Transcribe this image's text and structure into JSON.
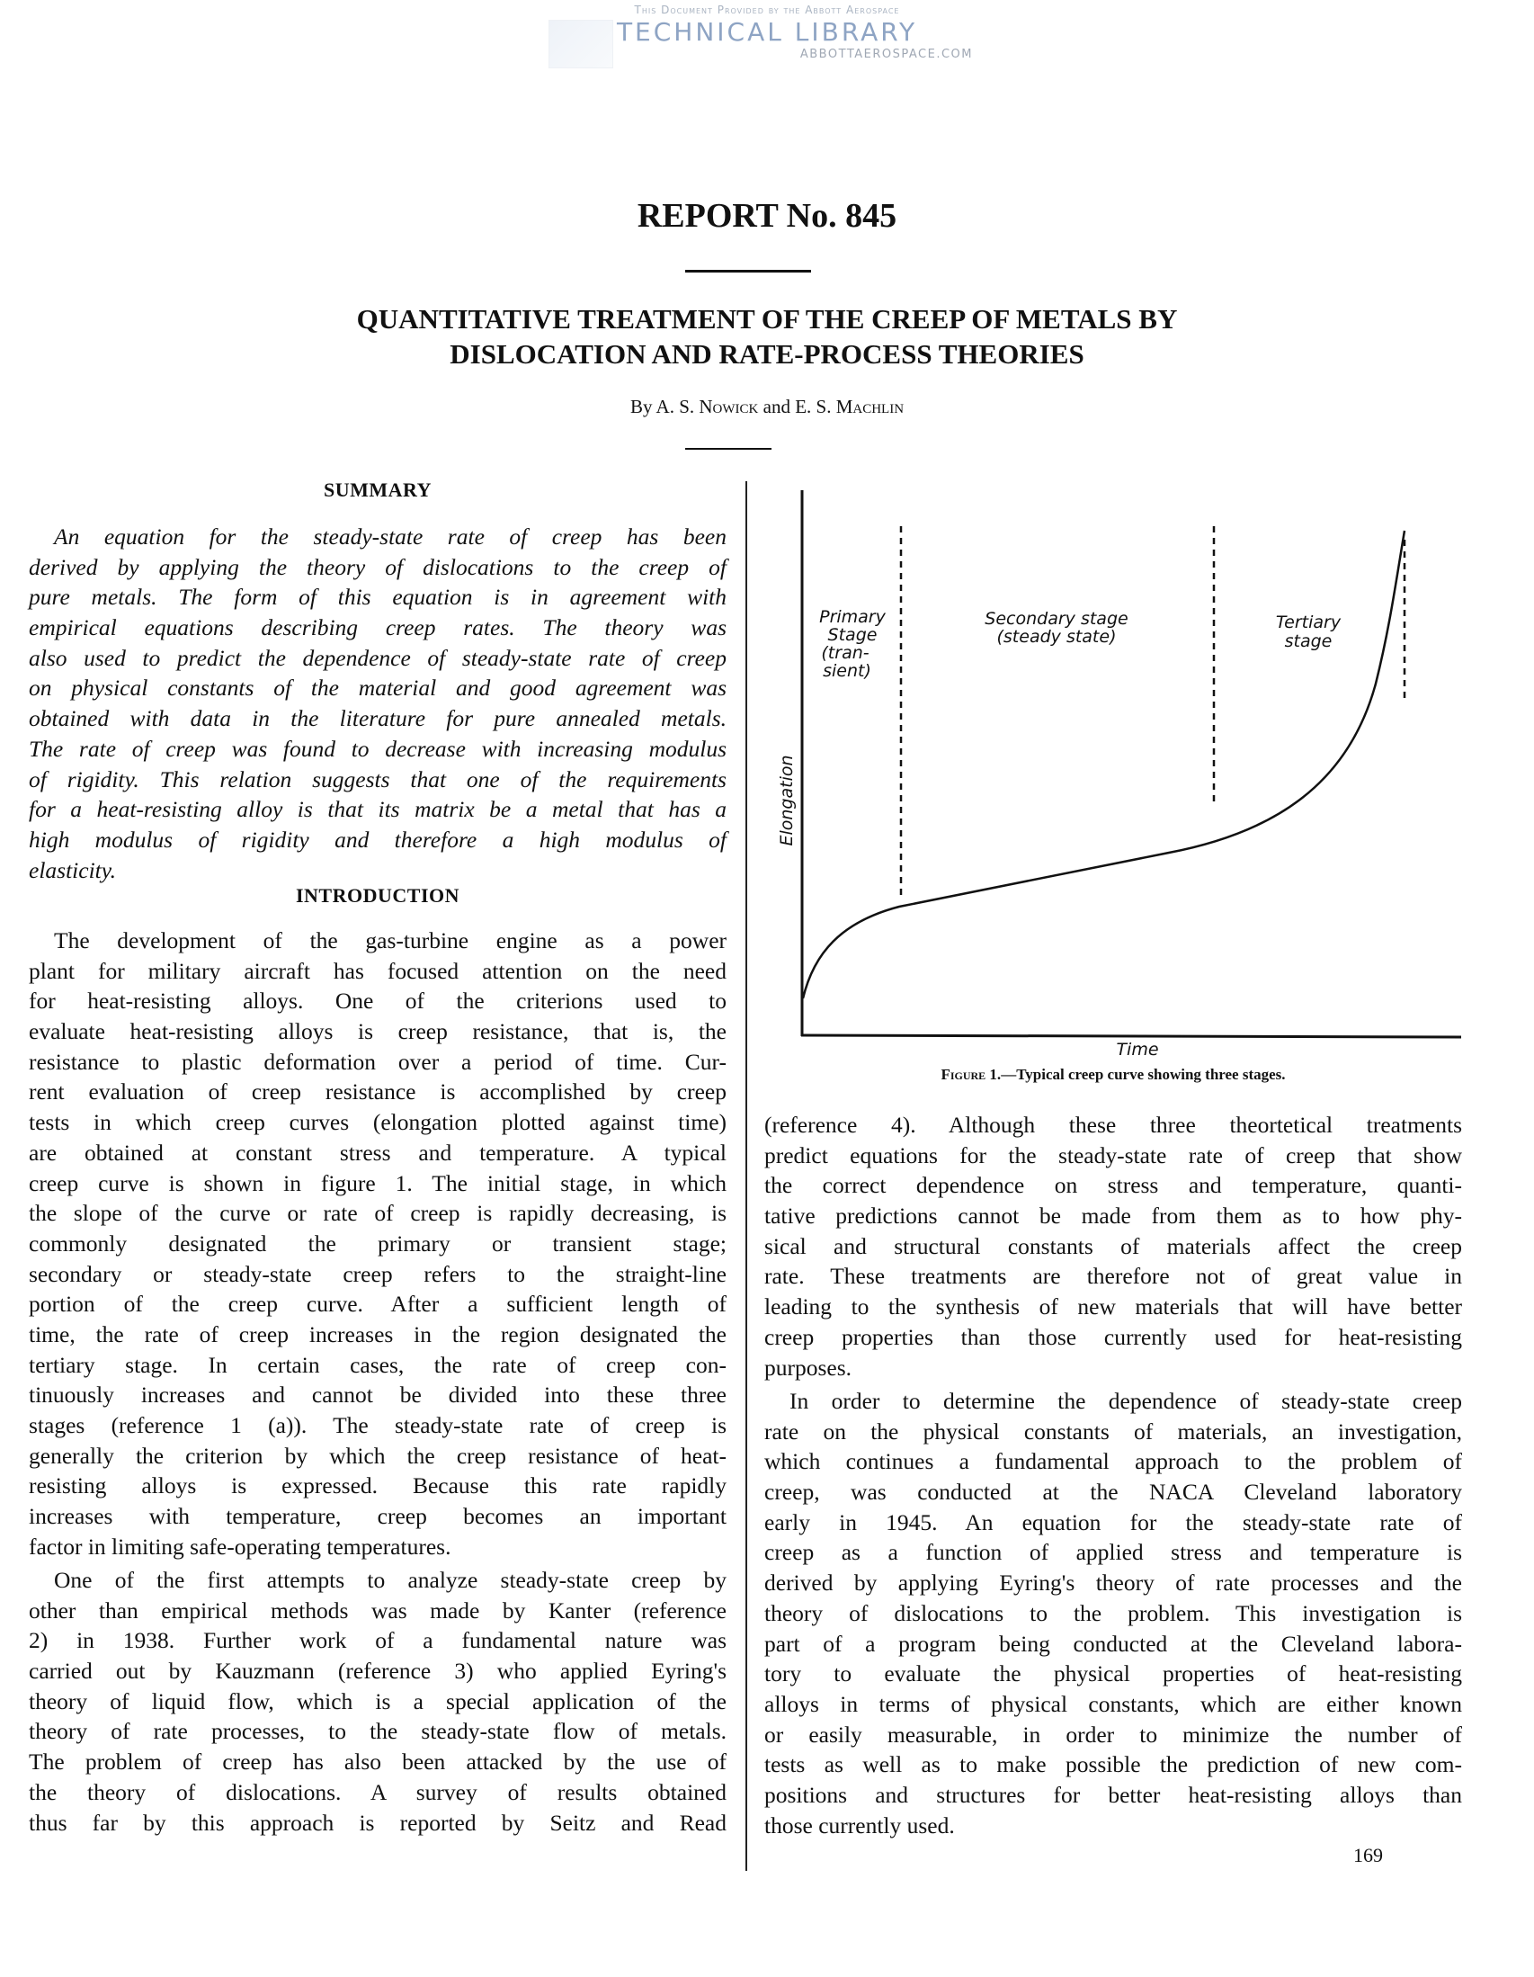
{
  "watermark": {
    "line1": "This Document Provided by the Abbott Aerospace",
    "line2": "TECHNICAL LIBRARY",
    "line3": "ABBOTTAEROSPACE.COM"
  },
  "header": {
    "report_number": "REPORT No. 845",
    "title_line1": "QUANTITATIVE TREATMENT OF THE CREEP OF METALS BY",
    "title_line2": "DISLOCATION AND RATE-PROCESS THEORIES",
    "byline_prefix": "By A. S. ",
    "author1": "Nowick",
    "byline_and": " and E. S. ",
    "author2": "Machlin"
  },
  "summary": {
    "heading": "SUMMARY",
    "lines": [
      "An equation for the steady-state rate of creep has been",
      "derived by applying the theory of dislocations to the creep of",
      "pure metals. The form of this equation is in agreement with",
      "empirical equations describing creep rates. The theory was",
      "also used to predict the dependence of steady-state rate of creep",
      "on physical constants of the material and good agreement was",
      "obtained with data in the literature for pure annealed metals.",
      "The rate of creep was found to decrease with increasing modulus",
      "of rigidity. This relation suggests that one of the requirements",
      "for a heat-resisting alloy is that its matrix be a metal that has a",
      "high modulus of rigidity and therefore a high modulus of",
      "elasticity."
    ]
  },
  "introduction": {
    "heading": "INTRODUCTION",
    "para1": [
      "The development of the gas-turbine engine as a power",
      "plant for military aircraft has focused attention on the need",
      "for heat-resisting alloys. One of the criterions used to",
      "evaluate heat-resisting alloys is creep resistance, that is, the",
      "resistance to plastic deformation over a period of time. Cur-",
      "rent evaluation of creep resistance is accomplished by creep",
      "tests in which creep curves (elongation plotted against time)",
      "are obtained at constant stress and temperature. A typical",
      "creep curve is shown in figure 1. The initial stage, in which",
      "the slope of the curve or rate of creep is rapidly decreasing, is",
      "commonly designated the primary or transient stage;",
      "secondary or steady-state creep refers to the straight-line",
      "portion of the creep curve. After a sufficient length of",
      "time, the rate of creep increases in the region designated the",
      "tertiary stage. In certain cases, the rate of creep con-",
      "tinuously increases and cannot be divided into these three",
      "stages (reference 1 (a)). The steady-state rate of creep is",
      "generally the criterion by which the creep resistance of heat-",
      "resisting alloys is expressed. Because this rate rapidly",
      "increases with temperature, creep becomes an important",
      "factor in limiting safe-operating temperatures."
    ],
    "para2": [
      "One of the first attempts to analyze steady-state creep by",
      "other than empirical methods was made by Kanter (reference",
      "2) in 1938. Further work of a fundamental nature was",
      "carried out by Kauzmann (reference 3) who applied Eyring's",
      "theory of liquid flow, which is a special application of the",
      "theory of rate processes, to the steady-state flow of metals.",
      "The problem of creep has also been attacked by the use of",
      "the theory of dislocations. A survey of results obtained",
      "thus far by this approach is reported by Seitz and Read"
    ],
    "para3": [
      "(reference 4). Although these three theortetical treatments",
      "predict equations for the steady-state rate of creep that show",
      "the correct dependence on stress and temperature, quanti-",
      "tative predictions cannot be made from them as to how phy-",
      "sical and structural constants of materials affect the creep",
      "rate. These treatments are therefore not of great value in",
      "leading to the synthesis of new materials that will have better",
      "creep properties than those currently used for heat-resisting",
      "purposes."
    ],
    "para4": [
      "In order to determine the dependence of steady-state creep",
      "rate on the physical constants of materials, an investigation,",
      "which continues a fundamental approach to the problem of",
      "creep, was conducted at the NACA Cleveland laboratory",
      "early in 1945. An equation for the steady-state rate of",
      "creep as a function of applied stress and temperature is",
      "derived by applying Eyring's theory of rate processes and the",
      "theory of dislocations to the problem. This investigation is",
      "part of a program being conducted at the Cleveland labora-",
      "tory to evaluate the physical properties of heat-resisting",
      "alloys in terms of physical constants, which are either known",
      "or easily measurable, in order to minimize the number of",
      "tests as well as to make possible the prediction of new com-",
      "positions and structures for better heat-resisting alloys than",
      "those currently used."
    ]
  },
  "figure": {
    "ylabel": "Elongation",
    "xlabel": "Time",
    "stage_primary": [
      "Primary",
      "Stage",
      "(tran-",
      "sient)"
    ],
    "stage_secondary": [
      "Secondary stage",
      "(steady state)"
    ],
    "stage_tertiary": [
      "Tertiary",
      "stage"
    ],
    "caption_prefix": "Figure 1.",
    "caption_text": "—Typical creep curve showing three stages."
  },
  "page_number": "169"
}
